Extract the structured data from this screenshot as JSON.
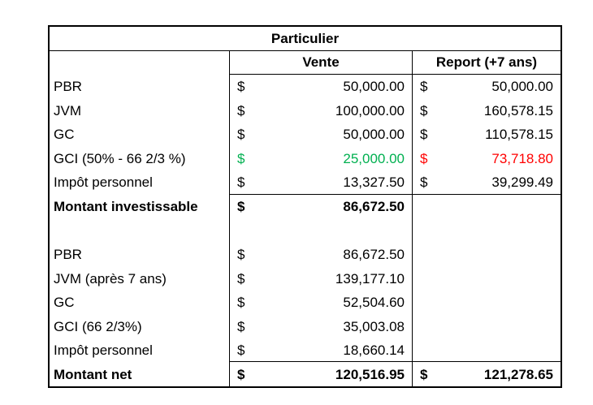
{
  "table": {
    "title": "Particulier",
    "col_headers": [
      "Vente",
      "Report  (+7 ans)"
    ],
    "currency_symbol": "$",
    "colors": {
      "green": "#00B050",
      "red": "#FF0000",
      "border": "#000000"
    },
    "section1": {
      "rows": [
        {
          "label": "PBR",
          "vente": "50,000.00",
          "report": "50,000.00"
        },
        {
          "label": "JVM",
          "vente": "100,000.00",
          "report": "160,578.15"
        },
        {
          "label": "GC",
          "vente": "50,000.00",
          "report": "110,578.15"
        },
        {
          "label": "GCI (50% - 66 2/3 %)",
          "vente": "25,000.00",
          "report": "73,718.80"
        },
        {
          "label": "Impôt personnel",
          "vente": "13,327.50",
          "report": "39,299.49"
        }
      ],
      "total": {
        "label": "Montant investissable",
        "vente": "86,672.50"
      }
    },
    "section2": {
      "rows": [
        {
          "label": "PBR",
          "vente": "86,672.50"
        },
        {
          "label": "JVM (après 7 ans)",
          "vente": "139,177.10"
        },
        {
          "label": "GC",
          "vente": "52,504.60"
        },
        {
          "label": "GCI (66 2/3%)",
          "vente": "35,003.08"
        },
        {
          "label": "Impôt personnel",
          "vente": "18,660.14"
        }
      ],
      "total": {
        "label": "Montant net",
        "vente": "120,516.95",
        "report": "121,278.65"
      }
    }
  }
}
